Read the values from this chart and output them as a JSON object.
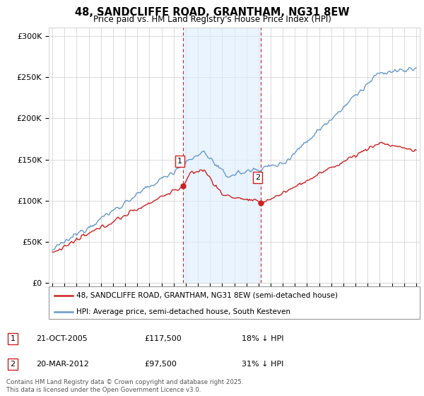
{
  "title": "48, SANDCLIFFE ROAD, GRANTHAM, NG31 8EW",
  "subtitle": "Price paid vs. HM Land Registry's House Price Index (HPI)",
  "legend_line1": "48, SANDCLIFFE ROAD, GRANTHAM, NG31 8EW (semi-detached house)",
  "legend_line2": "HPI: Average price, semi-detached house, South Kesteven",
  "transaction1_date": "21-OCT-2005",
  "transaction1_price": "£117,500",
  "transaction1_hpi": "18% ↓ HPI",
  "transaction2_date": "20-MAR-2012",
  "transaction2_price": "£97,500",
  "transaction2_hpi": "31% ↓ HPI",
  "copyright": "Contains HM Land Registry data © Crown copyright and database right 2025.\nThis data is licensed under the Open Government Licence v3.0.",
  "hpi_color": "#6699cc",
  "price_color": "#cc2222",
  "vline_color": "#cc2222",
  "shade_color": "#ddeeff",
  "ylim": [
    0,
    310000
  ],
  "yticks": [
    0,
    50000,
    100000,
    150000,
    200000,
    250000,
    300000
  ],
  "start_year": 1995,
  "end_year": 2025,
  "transaction1_year": 2005.8,
  "transaction2_year": 2012.2,
  "transaction1_value": 117500,
  "transaction2_value": 97500
}
